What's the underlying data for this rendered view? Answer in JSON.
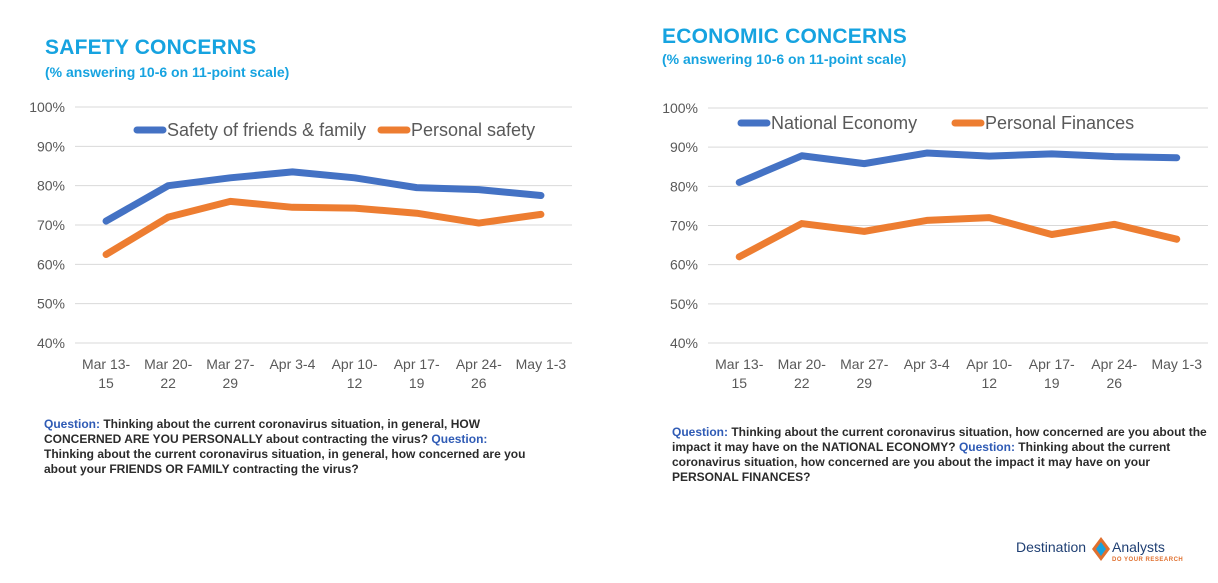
{
  "colors": {
    "title": "#16a3e0",
    "series_blue": "#4472c4",
    "series_orange": "#ed7d31",
    "axis_text": "#595959",
    "grid": "#d9d9d9",
    "question_label": "#2f5bb5"
  },
  "left": {
    "title": "SAFETY CONCERNS",
    "subtitle": "(% answering 10-6 on 11-point scale)",
    "question": {
      "q1_label": "Question:",
      "q1_text": "Thinking about the current coronavirus situation, in general, HOW CONCERNED ARE YOU PERSONALLY about contracting the virus?",
      "q2_label": "Question:",
      "q2_text": "Thinking about the current coronavirus situation, in general, how concerned are you about your FRIENDS OR FAMILY contracting the virus?"
    }
  },
  "right": {
    "title": "ECONOMIC CONCERNS",
    "subtitle": "(% answering 10-6 on 11-point scale)",
    "question": {
      "q1_label": "Question:",
      "q1_text": "Thinking about the current coronavirus situation, how concerned are you about the impact it may have on the NATIONAL ECONOMY?",
      "q2_label": "Question:",
      "q2_text": "Thinking about the current coronavirus situation, how concerned are you about the impact it may have on your PERSONAL FINANCES?"
    }
  },
  "brand": {
    "name_part1": "Destination",
    "name_part2": "Analysts",
    "tagline": "DO YOUR RESEARCH",
    "logo_icon": "diamond-logo-icon"
  },
  "chart_data": [
    {
      "type": "line",
      "categories": [
        [
          "Mar 13-",
          "15"
        ],
        [
          "Mar 20-",
          "22"
        ],
        [
          "Mar 27-",
          "29"
        ],
        [
          "Apr 3-4"
        ],
        [
          "Apr 10-",
          "12"
        ],
        [
          "Apr 17-",
          "19"
        ],
        [
          "Apr 24-",
          "26"
        ],
        [
          "May 1-3"
        ]
      ],
      "yticks": [
        "40%",
        "50%",
        "60%",
        "70%",
        "80%",
        "90%",
        "100%"
      ],
      "ylim": [
        40,
        100
      ],
      "grid": true,
      "legend_position": "top",
      "series": [
        {
          "name": "Safety of friends & family",
          "color": "#4472c4",
          "values": [
            71,
            80,
            82,
            83.5,
            82,
            79.5,
            79,
            77.5
          ]
        },
        {
          "name": "Personal safety",
          "color": "#ed7d31",
          "values": [
            62.5,
            72,
            76,
            74.5,
            74.3,
            73,
            70.5,
            72.7
          ]
        }
      ]
    },
    {
      "type": "line",
      "categories": [
        [
          "Mar 13-",
          "15"
        ],
        [
          "Mar 20-",
          "22"
        ],
        [
          "Mar 27-",
          "29"
        ],
        [
          "Apr 3-4"
        ],
        [
          "Apr 10-",
          "12"
        ],
        [
          "Apr 17-",
          "19"
        ],
        [
          "Apr 24-",
          "26"
        ],
        [
          "May 1-3"
        ]
      ],
      "yticks": [
        "40%",
        "50%",
        "60%",
        "70%",
        "80%",
        "90%",
        "100%"
      ],
      "ylim": [
        40,
        100
      ],
      "grid": true,
      "legend_position": "top",
      "series": [
        {
          "name": "National Economy",
          "color": "#4472c4",
          "values": [
            81,
            87.8,
            85.8,
            88.5,
            87.7,
            88.3,
            87.6,
            87.3
          ]
        },
        {
          "name": "Personal Finances",
          "color": "#ed7d31",
          "values": [
            62,
            70.5,
            68.5,
            71.3,
            72,
            67.7,
            70.3,
            66.5
          ]
        }
      ]
    }
  ]
}
